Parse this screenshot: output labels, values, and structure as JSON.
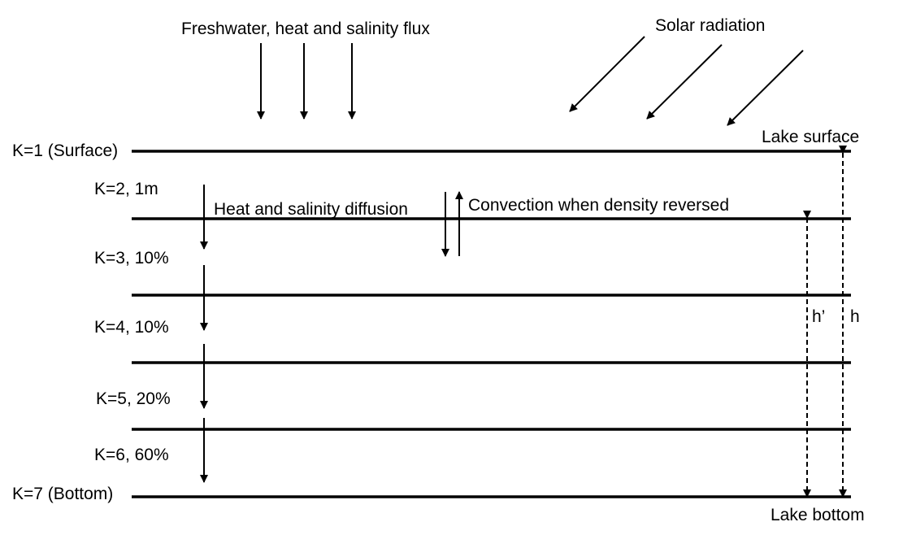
{
  "top_labels": {
    "flux": "Freshwater, heat and salinity flux",
    "solar": "Solar radiation"
  },
  "boundaries": {
    "surface": "Lake surface",
    "bottom": "Lake bottom"
  },
  "layers": [
    {
      "label": "K=1 (Surface)"
    },
    {
      "label": "K=2, 1m"
    },
    {
      "label": "K=3, 10%"
    },
    {
      "label": "K=4, 10%"
    },
    {
      "label": "K=5, 20%"
    },
    {
      "label": "K=6, 60%"
    },
    {
      "label": "K=7 (Bottom)"
    }
  ],
  "processes": {
    "diffusion": "Heat and salinity diffusion",
    "convection": "Convection when density reversed"
  },
  "depths": {
    "h_prime": "h’",
    "h": "h"
  }
}
